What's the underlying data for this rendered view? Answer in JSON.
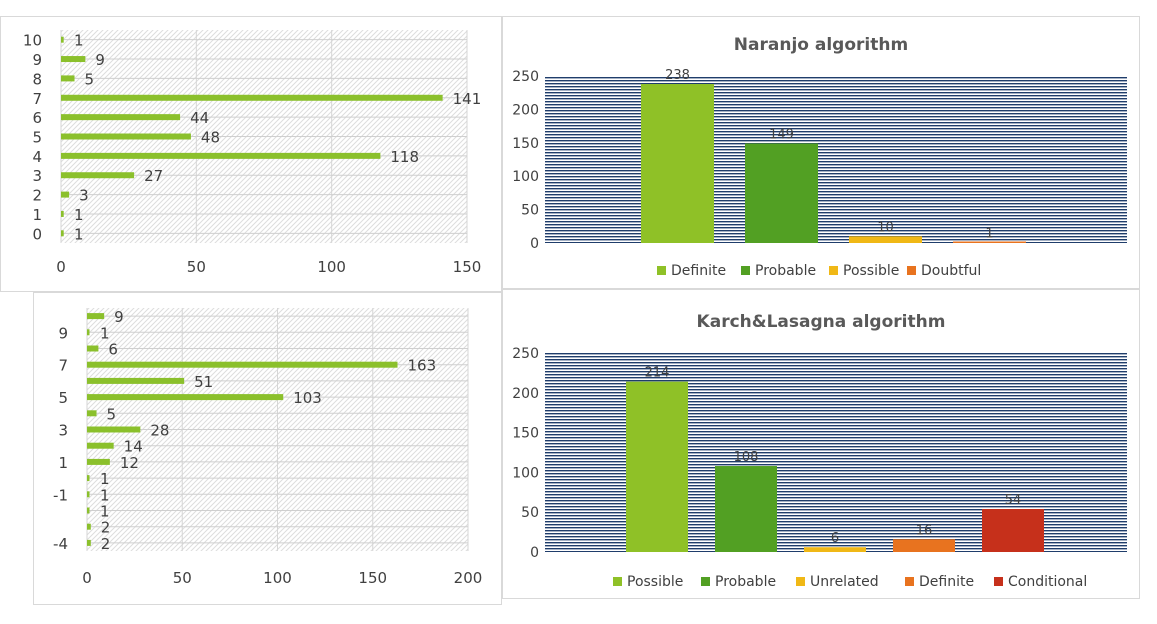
{
  "chart_data": [
    {
      "type": "bar",
      "orientation": "horizontal",
      "title": "",
      "categories": [
        "0",
        "1",
        "2",
        "3",
        "4",
        "5",
        "6",
        "7",
        "8",
        "9",
        "10"
      ],
      "values": [
        1,
        1,
        3,
        27,
        118,
        48,
        44,
        141,
        5,
        9,
        1
      ],
      "xlim": [
        0,
        150
      ],
      "xticks": [
        "0",
        "50",
        "100",
        "150"
      ],
      "grid": true,
      "colors": {
        "bar": "#8bc02c"
      }
    },
    {
      "type": "bar",
      "orientation": "horizontal",
      "title": "",
      "categories": [
        "-4",
        "-3",
        "-2",
        "-1",
        "0",
        "1",
        "2",
        "3",
        "4",
        "5",
        "6",
        "7",
        "8",
        "9",
        "10"
      ],
      "category_labels": [
        "-4",
        "",
        "",
        "-1",
        "",
        "1",
        "",
        "3",
        "",
        "5",
        "",
        "7",
        "",
        "9",
        ""
      ],
      "values": [
        2,
        2,
        1,
        1,
        1,
        12,
        14,
        28,
        5,
        103,
        51,
        163,
        6,
        1,
        9
      ],
      "xlim": [
        0,
        200
      ],
      "xticks": [
        "0",
        "50",
        "100",
        "150",
        "200"
      ],
      "grid": true,
      "colors": {
        "bar": "#8bc02c"
      }
    },
    {
      "type": "bar",
      "title": "Naranjo algorithm",
      "categories": [
        "Definite",
        "Probable",
        "Possible",
        "Doubtful"
      ],
      "values": [
        238,
        149,
        10,
        1
      ],
      "ylim": [
        0,
        250
      ],
      "yticks": [
        "0",
        "50",
        "100",
        "150",
        "200",
        "250"
      ],
      "legend": "bottom",
      "colors": [
        "#8fc127",
        "#52a023",
        "#f0b816",
        "#e8731f"
      ],
      "background": "navy-horizontal-lines"
    },
    {
      "type": "bar",
      "title": "Karch&Lasagna algorithm",
      "categories": [
        "Possible",
        "Probable",
        "Unrelated",
        "Definite",
        "Conditional"
      ],
      "values": [
        214,
        108,
        6,
        16,
        54
      ],
      "ylim": [
        0,
        250
      ],
      "yticks": [
        "0",
        "50",
        "100",
        "150",
        "200",
        "250"
      ],
      "legend": "bottom",
      "colors": [
        "#8fc127",
        "#52a023",
        "#f0b816",
        "#e8731f",
        "#c6301b"
      ],
      "background": "navy-horizontal-lines"
    }
  ]
}
